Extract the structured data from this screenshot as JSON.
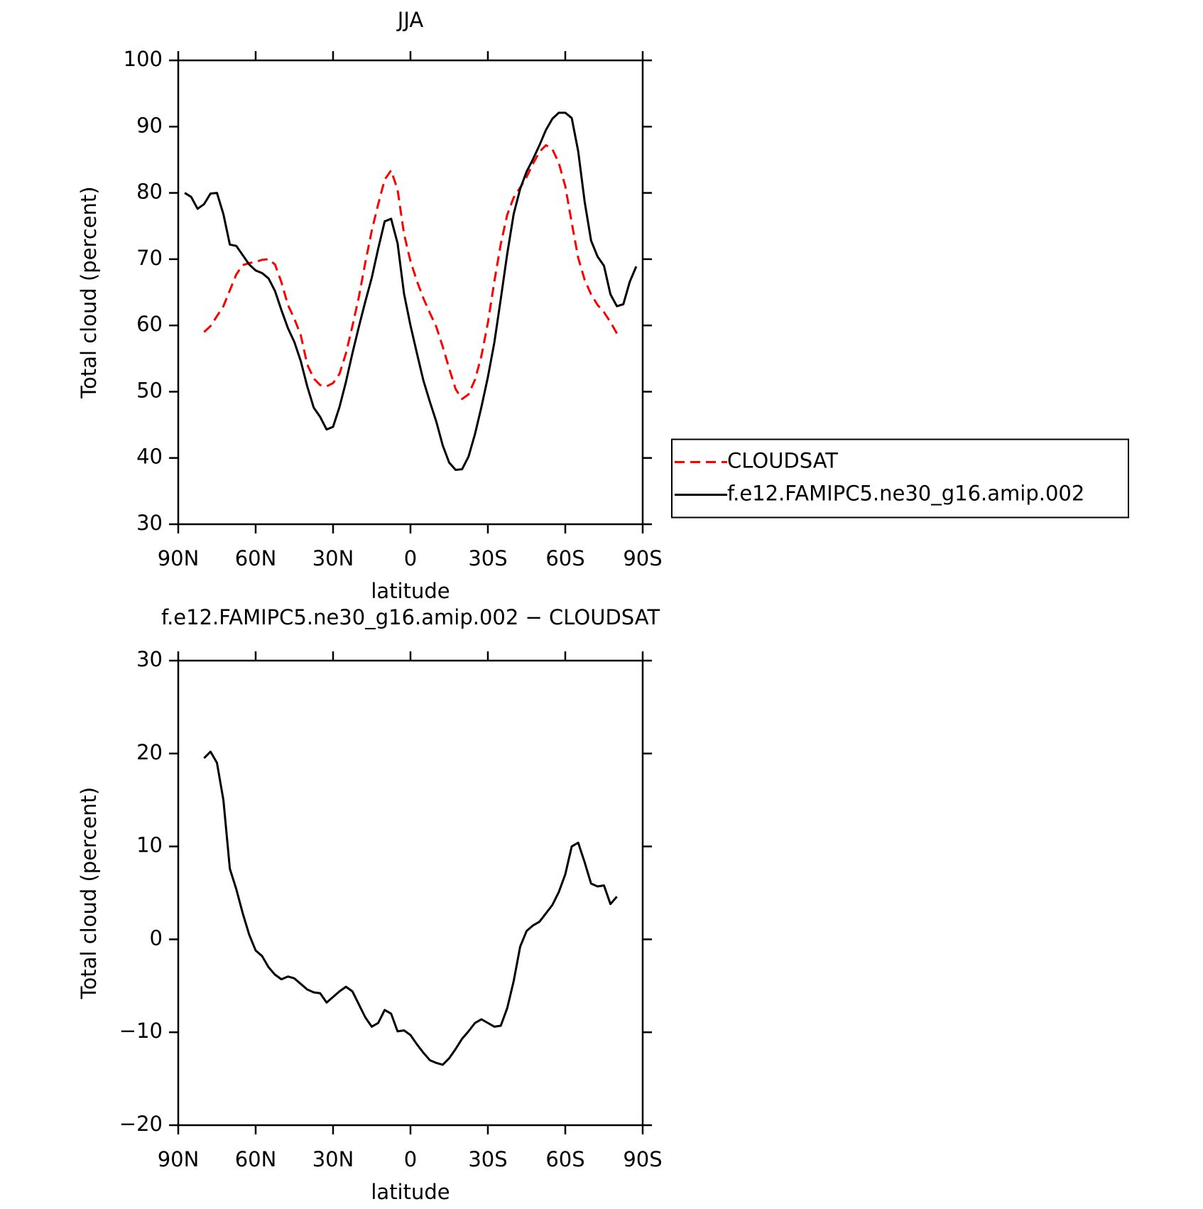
{
  "chart_data": [
    {
      "type": "line",
      "title": "JJA",
      "xlabel": "latitude",
      "ylabel": "Total cloud (percent)",
      "x": [
        87.5,
        85,
        82.5,
        80,
        77.5,
        75,
        72.5,
        70,
        67.5,
        65,
        62.5,
        60,
        57.5,
        55,
        52.5,
        50,
        47.5,
        45,
        42.5,
        40,
        37.5,
        35,
        32.5,
        30,
        27.5,
        25,
        22.5,
        20,
        17.5,
        15,
        12.5,
        10,
        7.5,
        5,
        2.5,
        0,
        -2.5,
        -5,
        -7.5,
        -10,
        -12.5,
        -15,
        -17.5,
        -20,
        -22.5,
        -25,
        -27.5,
        -30,
        -32.5,
        -35,
        -37.5,
        -40,
        -42.5,
        -45,
        -47.5,
        -50,
        -52.5,
        -55,
        -57.5,
        -60,
        -62.5,
        -65,
        -67.5,
        -70,
        -72.5,
        -75,
        -77.5,
        -80,
        -82.5,
        -85,
        -87.5
      ],
      "series": [
        {
          "name": "CLOUDSAT",
          "color": "#ff0000",
          "dashed": true,
          "values": [
            null,
            null,
            null,
            59.0,
            59.9,
            61.4,
            62.9,
            65.3,
            67.7,
            69.1,
            69.4,
            69.6,
            69.9,
            70.0,
            69.2,
            66.5,
            63.1,
            61.0,
            58.5,
            54.1,
            52.0,
            51.0,
            50.8,
            51.3,
            52.7,
            55.8,
            59.9,
            64.3,
            69.5,
            74.3,
            78.3,
            82.0,
            83.4,
            80.5,
            73.8,
            69.7,
            66.7,
            64.1,
            61.9,
            59.8,
            56.8,
            53.5,
            50.4,
            48.9,
            49.6,
            51.8,
            55.4,
            60.4,
            66.6,
            72.3,
            76.7,
            79.3,
            80.8,
            82.4,
            84.4,
            86.2,
            87.2,
            86.6,
            84.5,
            81.0,
            75.5,
            70.2,
            66.9,
            64.7,
            63.1,
            62.0,
            60.5,
            58.8,
            null,
            null,
            null
          ]
        },
        {
          "name": "f.e12.FAMIPC5.ne30_g16.amip.002",
          "color": "#000000",
          "dashed": false,
          "values": [
            80.0,
            79.4,
            77.6,
            78.3,
            79.9,
            80.0,
            76.8,
            72.2,
            72.0,
            70.6,
            69.2,
            68.3,
            67.9,
            67.1,
            65.2,
            62.3,
            59.6,
            57.5,
            54.6,
            50.8,
            47.6,
            46.2,
            44.3,
            44.7,
            47.7,
            51.5,
            55.8,
            59.8,
            63.6,
            67.2,
            71.6,
            75.7,
            76.1,
            72.4,
            64.8,
            60.0,
            55.8,
            51.7,
            48.5,
            45.5,
            41.9,
            39.3,
            38.2,
            38.3,
            40.2,
            43.6,
            47.7,
            52.2,
            57.4,
            64.0,
            70.8,
            76.8,
            80.6,
            83.2,
            85.1,
            87.2,
            89.5,
            91.2,
            92.1,
            92.1,
            91.3,
            86.3,
            78.7,
            72.8,
            70.4,
            69.0,
            64.7,
            62.9,
            63.2,
            66.6,
            68.9
          ]
        }
      ],
      "xlim": [
        90,
        -90
      ],
      "xticks": [
        {
          "value": 90,
          "label": "90N"
        },
        {
          "value": 60,
          "label": "60N"
        },
        {
          "value": 30,
          "label": "30N"
        },
        0,
        {
          "value": -30,
          "label": "30S"
        },
        {
          "value": -60,
          "label": "60S"
        },
        {
          "value": -90,
          "label": "90S"
        }
      ],
      "ylim": [
        30,
        100
      ],
      "yticks": [
        30,
        40,
        50,
        60,
        70,
        80,
        90,
        100
      ],
      "legend": "right"
    },
    {
      "type": "line",
      "title": "f.e12.FAMIPC5.ne30_g16.amip.002 − CLOUDSAT",
      "xlabel": "latitude",
      "ylabel": "Total cloud (percent)",
      "x": [
        87.5,
        85,
        82.5,
        80,
        77.5,
        75,
        72.5,
        70,
        67.5,
        65,
        62.5,
        60,
        57.5,
        55,
        52.5,
        50,
        47.5,
        45,
        42.5,
        40,
        37.5,
        35,
        32.5,
        30,
        27.5,
        25,
        22.5,
        20,
        17.5,
        15,
        12.5,
        10,
        7.5,
        5,
        2.5,
        0,
        -2.5,
        -5,
        -7.5,
        -10,
        -12.5,
        -15,
        -17.5,
        -20,
        -22.5,
        -25,
        -27.5,
        -30,
        -32.5,
        -35,
        -37.5,
        -40,
        -42.5,
        -45,
        -47.5,
        -50,
        -52.5,
        -55,
        -57.5,
        -60,
        -62.5,
        -65,
        -67.5,
        -70,
        -72.5,
        -75,
        -77.5,
        -80,
        -82.5,
        -85,
        -87.5
      ],
      "series": [
        {
          "color": "#000000",
          "dashed": false,
          "values": [
            null,
            null,
            null,
            19.5,
            20.2,
            19.0,
            15.0,
            7.6,
            5.4,
            2.8,
            0.5,
            -1.2,
            -1.8,
            -3.0,
            -3.8,
            -4.3,
            -4.0,
            -4.2,
            -4.8,
            -5.4,
            -5.7,
            -5.8,
            -6.8,
            -6.2,
            -5.6,
            -5.1,
            -5.6,
            -7.0,
            -8.4,
            -9.4,
            -9.0,
            -7.6,
            -8.0,
            -9.9,
            -9.8,
            -10.3,
            -11.3,
            -12.2,
            -13.0,
            -13.3,
            -13.5,
            -12.8,
            -11.8,
            -10.7,
            -9.9,
            -9.0,
            -8.6,
            -9.0,
            -9.4,
            -9.3,
            -7.4,
            -4.5,
            -0.8,
            0.9,
            1.5,
            1.9,
            2.8,
            3.7,
            5.1,
            7.0,
            10.0,
            10.4,
            8.3,
            6.0,
            5.7,
            5.8,
            3.8,
            4.6,
            null,
            null,
            null
          ]
        }
      ],
      "xlim": [
        90,
        -90
      ],
      "xticks": [
        {
          "value": 90,
          "label": "90N"
        },
        {
          "value": 60,
          "label": "60N"
        },
        {
          "value": 30,
          "label": "30N"
        },
        0,
        {
          "value": -30,
          "label": "30S"
        },
        {
          "value": -60,
          "label": "60S"
        },
        {
          "value": -90,
          "label": "90S"
        }
      ],
      "ylim": [
        -20,
        30
      ],
      "yticks": [
        {
          "value": -20,
          "label": "−20"
        },
        {
          "value": -10,
          "label": "−10"
        },
        0,
        10,
        20,
        30
      ]
    }
  ]
}
